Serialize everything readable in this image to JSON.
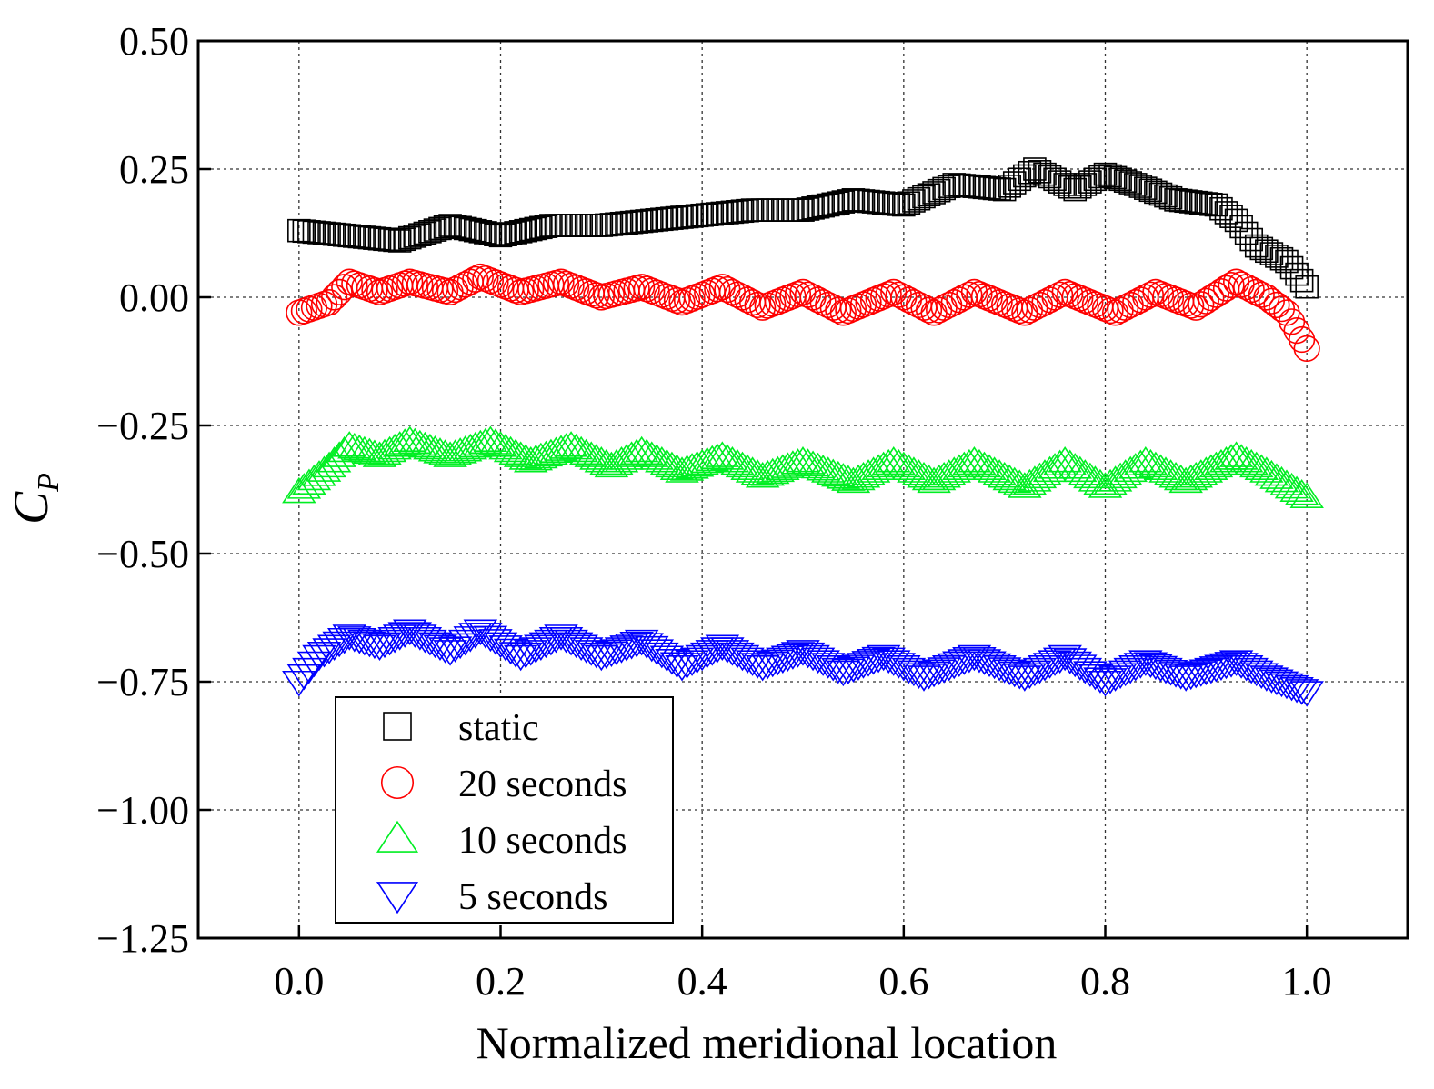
{
  "chart_data": {
    "type": "scatter",
    "xlabel": "Normalized meridional location",
    "ylabel_main": "C",
    "ylabel_sub": "P",
    "xlim": [
      -0.1,
      1.1
    ],
    "ylim": [
      -1.25,
      0.5
    ],
    "xticks": [
      0.0,
      0.2,
      0.4,
      0.6,
      0.8,
      1.0
    ],
    "xtick_labels": [
      "0.0",
      "0.2",
      "0.4",
      "0.6",
      "0.8",
      "1.0"
    ],
    "yticks": [
      0.5,
      0.25,
      0.0,
      -0.25,
      -0.5,
      -0.75,
      -1.0,
      -1.25
    ],
    "ytick_labels": [
      "0.50",
      "0.25",
      "0.00",
      "−0.25",
      "−0.50",
      "−0.75",
      "−1.00",
      "−1.25"
    ],
    "grid": true,
    "legend_position": "bottom-left",
    "series": [
      {
        "name": "static",
        "marker": "square",
        "color": "#000000",
        "profile": [
          [
            0.0,
            0.13
          ],
          [
            0.05,
            0.12
          ],
          [
            0.1,
            0.11
          ],
          [
            0.15,
            0.14
          ],
          [
            0.2,
            0.12
          ],
          [
            0.25,
            0.14
          ],
          [
            0.3,
            0.14
          ],
          [
            0.35,
            0.15
          ],
          [
            0.4,
            0.16
          ],
          [
            0.45,
            0.17
          ],
          [
            0.5,
            0.17
          ],
          [
            0.55,
            0.19
          ],
          [
            0.6,
            0.18
          ],
          [
            0.65,
            0.22
          ],
          [
            0.7,
            0.21
          ],
          [
            0.73,
            0.25
          ],
          [
            0.77,
            0.21
          ],
          [
            0.8,
            0.24
          ],
          [
            0.83,
            0.22
          ],
          [
            0.87,
            0.19
          ],
          [
            0.91,
            0.18
          ],
          [
            0.93,
            0.15
          ],
          [
            0.95,
            0.1
          ],
          [
            0.98,
            0.07
          ],
          [
            1.0,
            0.02
          ]
        ]
      },
      {
        "name": "20 seconds",
        "marker": "circle",
        "color": "#ff0000",
        "profile": [
          [
            0.0,
            -0.03
          ],
          [
            0.03,
            -0.01
          ],
          [
            0.05,
            0.03
          ],
          [
            0.08,
            0.01
          ],
          [
            0.11,
            0.03
          ],
          [
            0.15,
            0.01
          ],
          [
            0.18,
            0.04
          ],
          [
            0.22,
            0.01
          ],
          [
            0.26,
            0.03
          ],
          [
            0.3,
            0.0
          ],
          [
            0.34,
            0.02
          ],
          [
            0.38,
            -0.01
          ],
          [
            0.42,
            0.02
          ],
          [
            0.46,
            -0.02
          ],
          [
            0.5,
            0.01
          ],
          [
            0.54,
            -0.03
          ],
          [
            0.59,
            0.01
          ],
          [
            0.63,
            -0.03
          ],
          [
            0.67,
            0.01
          ],
          [
            0.72,
            -0.03
          ],
          [
            0.76,
            0.01
          ],
          [
            0.81,
            -0.03
          ],
          [
            0.85,
            0.01
          ],
          [
            0.89,
            -0.02
          ],
          [
            0.93,
            0.03
          ],
          [
            0.96,
            0.0
          ],
          [
            0.98,
            -0.03
          ],
          [
            1.0,
            -0.1
          ]
        ]
      },
      {
        "name": "10 seconds",
        "marker": "triangle-up",
        "color": "#00ee22",
        "profile": [
          [
            0.0,
            -0.38
          ],
          [
            0.03,
            -0.33
          ],
          [
            0.05,
            -0.29
          ],
          [
            0.08,
            -0.31
          ],
          [
            0.11,
            -0.28
          ],
          [
            0.15,
            -0.31
          ],
          [
            0.19,
            -0.28
          ],
          [
            0.23,
            -0.32
          ],
          [
            0.27,
            -0.29
          ],
          [
            0.31,
            -0.33
          ],
          [
            0.34,
            -0.3
          ],
          [
            0.38,
            -0.34
          ],
          [
            0.42,
            -0.31
          ],
          [
            0.46,
            -0.35
          ],
          [
            0.5,
            -0.32
          ],
          [
            0.55,
            -0.36
          ],
          [
            0.59,
            -0.32
          ],
          [
            0.63,
            -0.36
          ],
          [
            0.67,
            -0.32
          ],
          [
            0.72,
            -0.37
          ],
          [
            0.76,
            -0.32
          ],
          [
            0.8,
            -0.37
          ],
          [
            0.84,
            -0.32
          ],
          [
            0.88,
            -0.36
          ],
          [
            0.93,
            -0.31
          ],
          [
            0.96,
            -0.34
          ],
          [
            1.0,
            -0.39
          ]
        ]
      },
      {
        "name": "5 seconds",
        "marker": "triangle-down",
        "color": "#0000ff",
        "profile": [
          [
            0.0,
            -0.75
          ],
          [
            0.02,
            -0.7
          ],
          [
            0.05,
            -0.66
          ],
          [
            0.08,
            -0.68
          ],
          [
            0.11,
            -0.65
          ],
          [
            0.15,
            -0.69
          ],
          [
            0.18,
            -0.65
          ],
          [
            0.22,
            -0.7
          ],
          [
            0.26,
            -0.66
          ],
          [
            0.3,
            -0.7
          ],
          [
            0.34,
            -0.67
          ],
          [
            0.38,
            -0.72
          ],
          [
            0.42,
            -0.68
          ],
          [
            0.46,
            -0.72
          ],
          [
            0.5,
            -0.69
          ],
          [
            0.54,
            -0.73
          ],
          [
            0.58,
            -0.7
          ],
          [
            0.62,
            -0.74
          ],
          [
            0.67,
            -0.7
          ],
          [
            0.72,
            -0.74
          ],
          [
            0.76,
            -0.7
          ],
          [
            0.8,
            -0.75
          ],
          [
            0.84,
            -0.71
          ],
          [
            0.88,
            -0.74
          ],
          [
            0.93,
            -0.71
          ],
          [
            0.96,
            -0.74
          ],
          [
            1.0,
            -0.77
          ]
        ]
      }
    ]
  }
}
